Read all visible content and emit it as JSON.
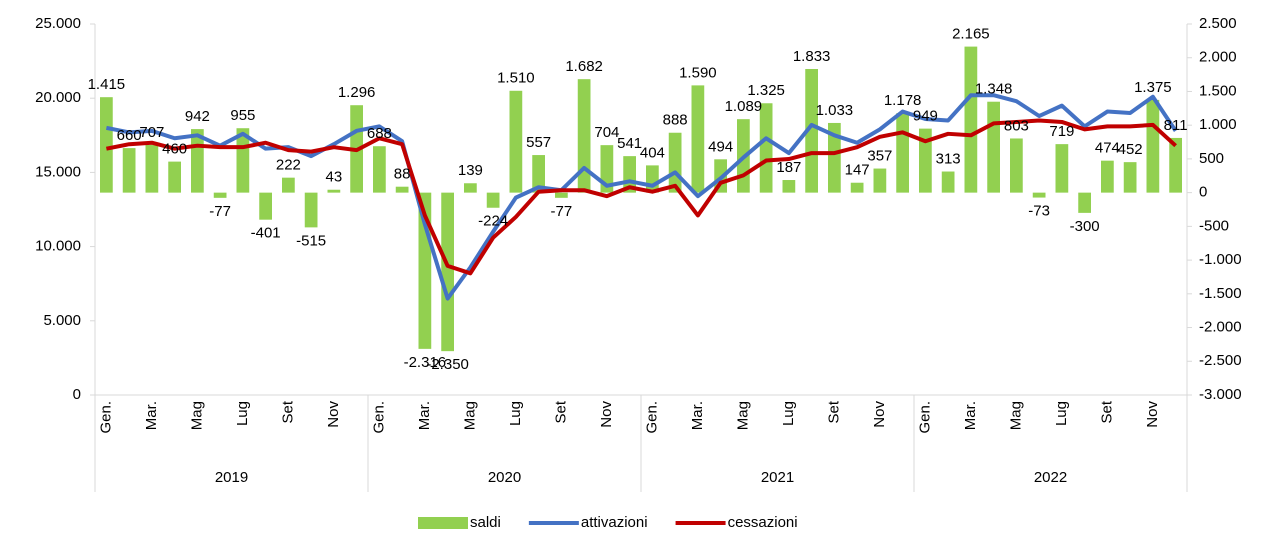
{
  "chart_data": {
    "type": "bar",
    "categories": [
      "Gen.",
      null,
      "Mar.",
      null,
      "Mag",
      null,
      "Lug",
      null,
      "Set",
      null,
      "Nov",
      null,
      "Gen.",
      null,
      "Mar.",
      null,
      "Mag",
      null,
      "Lug",
      null,
      "Set",
      null,
      "Nov",
      null,
      "Gen.",
      null,
      "Mar.",
      null,
      "Mag",
      null,
      "Lug",
      null,
      "Set",
      null,
      "Nov",
      null,
      "Gen.",
      null,
      "Mar.",
      null,
      "Mag",
      null,
      "Lug",
      null,
      "Set",
      null,
      "Nov",
      null
    ],
    "groups": [
      "2019",
      "2020",
      "2021",
      "2022"
    ],
    "ylim": [
      0,
      25000
    ],
    "yticks": [
      0,
      {
        "value": 5000,
        "label": "5.000"
      },
      {
        "value": 10000,
        "label": "10.000"
      },
      {
        "value": 15000,
        "label": "15.000"
      },
      {
        "value": 20000,
        "label": "20.000"
      },
      {
        "value": 25000,
        "label": "25.000"
      }
    ],
    "y2lim": [
      -3000,
      2500
    ],
    "y2ticks": [
      {
        "value": -3000,
        "label": "-3.000"
      },
      {
        "value": -2500,
        "label": "-2.500"
      },
      {
        "value": -2000,
        "label": "-2.000"
      },
      {
        "value": -1500,
        "label": "-1.500"
      },
      {
        "value": -1000,
        "label": "-1.000"
      },
      -500,
      0,
      500,
      {
        "value": 1000,
        "label": "1.000"
      },
      {
        "value": 1500,
        "label": "1.500"
      },
      {
        "value": 2000,
        "label": "2.000"
      },
      {
        "value": 2500,
        "label": "2.500"
      }
    ],
    "legend": "bottom",
    "series": [
      {
        "name": "saldi",
        "type": "bar",
        "axis": "y2",
        "color": "#92d050",
        "values": [
          1415,
          660,
          707,
          460,
          942,
          -77,
          955,
          -401,
          222,
          -515,
          43,
          1296,
          688,
          88,
          -2316,
          -2350,
          139,
          -224,
          1510,
          557,
          -77,
          1682,
          704,
          541,
          404,
          888,
          1590,
          494,
          1089,
          1325,
          187,
          1833,
          1033,
          147,
          357,
          1178,
          949,
          313,
          2165,
          1348,
          803,
          -73,
          719,
          -300,
          474,
          452,
          1375,
          811
        ],
        "value_labels": [
          "1.415",
          "660",
          "707",
          "460",
          "942",
          "-77",
          "955",
          "-401",
          "222",
          "-515",
          "43",
          "1.296",
          "688",
          "88",
          "-2.316",
          "-2.350",
          "139",
          "-224",
          "1.510",
          "557",
          "-77",
          "1.682",
          "704",
          "541",
          "404",
          "888",
          "1.590",
          "494",
          "1.089",
          "1.325",
          "187",
          "1.833",
          "1.033",
          "147",
          "357",
          "1.178",
          "949",
          "313",
          "2.165",
          "1.348",
          "803",
          "-73",
          "719",
          "-300",
          "474",
          "452",
          "1.375",
          "811"
        ]
      },
      {
        "name": "attivazioni",
        "type": "line",
        "color": "#4472c4",
        "values": [
          18000,
          17700,
          17800,
          17300,
          17500,
          16800,
          17600,
          16600,
          16700,
          16100,
          16900,
          17800,
          18100,
          17100,
          11500,
          6500,
          8600,
          11000,
          13300,
          14000,
          13800,
          15300,
          14100,
          14400,
          14100,
          15000,
          13400,
          14600,
          16000,
          17300,
          16300,
          18200,
          17500,
          17000,
          17900,
          19100,
          18600,
          18500,
          20200,
          20200,
          19800,
          18800,
          19500,
          18100,
          19100,
          19000,
          20100,
          17800
        ]
      },
      {
        "name": "cessazioni",
        "type": "line",
        "color": "#c00000",
        "values": [
          16600,
          16900,
          17000,
          16600,
          16800,
          16700,
          16700,
          17000,
          16500,
          16400,
          16700,
          16500,
          17300,
          16900,
          12100,
          8700,
          8200,
          10600,
          12000,
          13700,
          13800,
          13800,
          13400,
          14000,
          13700,
          14100,
          12100,
          14300,
          14800,
          15800,
          15900,
          16300,
          16300,
          16700,
          17400,
          17700,
          17100,
          17600,
          17500,
          18300,
          18400,
          18500,
          18400,
          17900,
          18100,
          18100,
          18200,
          16800
        ]
      }
    ]
  }
}
